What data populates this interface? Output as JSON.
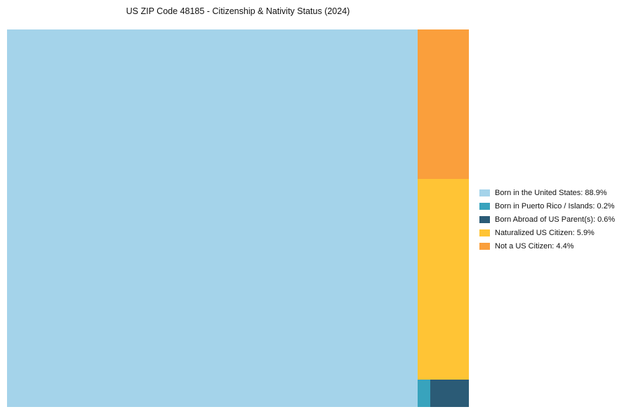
{
  "title": "US ZIP Code 48185 - Citizenship & Nativity Status (2024)",
  "chart_data": {
    "type": "treemap",
    "title": "US ZIP Code 48185 - Citizenship & Nativity Status (2024)",
    "categories": [
      "Born in the United States",
      "Born in Puerto Rico / Islands",
      "Born Abroad of US Parent(s)",
      "Naturalized US Citizen",
      "Not a US Citizen"
    ],
    "values": [
      88.9,
      0.2,
      0.6,
      5.9,
      4.4
    ],
    "colors": [
      "#A4D3EA",
      "#38A3BD",
      "#2B5B76",
      "#FFC435",
      "#FA9F3C"
    ],
    "legend": [
      "Born in the United States: 88.9%",
      "Born in Puerto Rico / Islands: 0.2%",
      "Born Abroad of US Parent(s): 0.6%",
      "Naturalized US Citizen: 5.9%",
      "Not a US Citizen: 4.4%"
    ],
    "legend_position": "right",
    "grid": false
  }
}
